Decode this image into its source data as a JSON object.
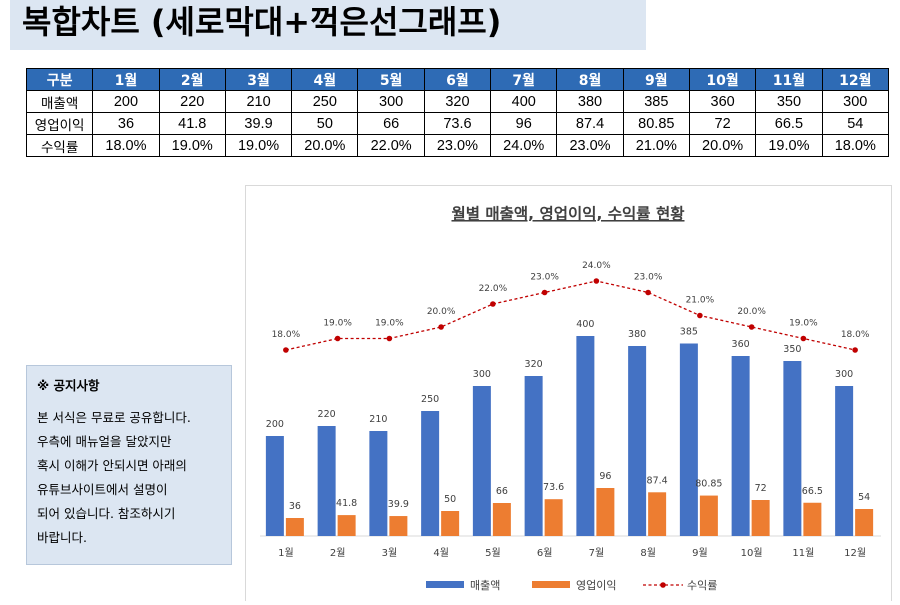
{
  "page": {
    "title": "복합차트 (세로막대+꺽은선그래프)"
  },
  "table": {
    "headers": [
      "구분",
      "1월",
      "2월",
      "3월",
      "4월",
      "5월",
      "6월",
      "7월",
      "8월",
      "9월",
      "10월",
      "11월",
      "12월"
    ],
    "rows": [
      [
        "매출액",
        "200",
        "220",
        "210",
        "250",
        "300",
        "320",
        "400",
        "380",
        "385",
        "360",
        "350",
        "300"
      ],
      [
        "영업이익",
        "36",
        "41.8",
        "39.9",
        "50",
        "66",
        "73.6",
        "96",
        "87.4",
        "80.85",
        "72",
        "66.5",
        "54"
      ],
      [
        "수익률",
        "18.0%",
        "19.0%",
        "19.0%",
        "20.0%",
        "22.0%",
        "23.0%",
        "24.0%",
        "23.0%",
        "21.0%",
        "20.0%",
        "19.0%",
        "18.0%"
      ]
    ],
    "header_color": "#2e6bb5"
  },
  "notice": {
    "title": "※ 공지사항",
    "lines": [
      "본 서식은 무료로 공유합니다.",
      "우측에 매뉴얼을 달았지만",
      "혹시 이해가 안되시면 아래의",
      "유튜브사이트에서 설명이",
      "되어 있습니다. 참조하시기",
      "바랍니다."
    ]
  },
  "chart_data": {
    "type": "bar",
    "title": "월별 매출액, 영업이익, 수익률 현황",
    "categories": [
      "1월",
      "2월",
      "3월",
      "4월",
      "5월",
      "6월",
      "7월",
      "8월",
      "9월",
      "10월",
      "11월",
      "12월"
    ],
    "series": [
      {
        "name": "매출액",
        "type": "bar",
        "color": "#4472c4",
        "values": [
          200,
          220,
          210,
          250,
          300,
          320,
          400,
          380,
          385,
          360,
          350,
          300
        ],
        "labels": [
          "200",
          "220",
          "210",
          "250",
          "300",
          "320",
          "400",
          "380",
          "385",
          "360",
          "350",
          "300"
        ]
      },
      {
        "name": "영업이익",
        "type": "bar",
        "color": "#ed7d31",
        "values": [
          36,
          41.8,
          39.9,
          50,
          66,
          73.6,
          96,
          87.4,
          80.85,
          72,
          66.5,
          54
        ],
        "labels": [
          "36",
          "41.8",
          "39.9",
          "50",
          "66",
          "73.6",
          "96",
          "87.4",
          "80.85",
          "72",
          "66.5",
          "54"
        ]
      },
      {
        "name": "수익률",
        "type": "line",
        "style": "dashed-with-markers",
        "axis": "secondary",
        "color": "#c00000",
        "values": [
          18.0,
          19.0,
          19.0,
          20.0,
          22.0,
          23.0,
          24.0,
          23.0,
          21.0,
          20.0,
          19.0,
          18.0
        ],
        "labels": [
          "18.0%",
          "19.0%",
          "19.0%",
          "20.0%",
          "22.0%",
          "23.0%",
          "24.0%",
          "23.0%",
          "21.0%",
          "20.0%",
          "19.0%",
          "18.0%"
        ]
      }
    ],
    "ylim": [
      0,
      450
    ],
    "y2lim": [
      0,
      30
    ],
    "grid": false,
    "axes_visible": false,
    "legend": "bottom"
  }
}
